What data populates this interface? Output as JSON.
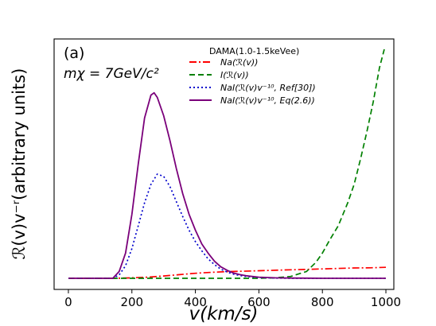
{
  "chart_data": {
    "type": "line",
    "panel_label": "(a)",
    "mass_label": "mχ = 7GeV/c²",
    "xlabel": "v(km/s)",
    "ylabel": "ℛ(v)v⁻ʳ(arbitrary units)",
    "legend_title": "DAMA(1.0-1.5keVee)",
    "legend_position": "top-right",
    "xlim": [
      -45,
      1025
    ],
    "ylim": [
      0,
      100
    ],
    "xticks": [
      0,
      200,
      400,
      600,
      800,
      1000
    ],
    "yticks_shown": false,
    "grid": false,
    "series": [
      {
        "name": "Na(ℛ(v))",
        "color": "#ff0000",
        "dash": "dashdot",
        "x": [
          0,
          150,
          200,
          250,
          300,
          350,
          400,
          450,
          500,
          550,
          600,
          650,
          700,
          750,
          800,
          850,
          900,
          950,
          1000
        ],
        "y": [
          0,
          0,
          0.2,
          0.5,
          1.0,
          1.6,
          2.2,
          2.6,
          2.9,
          3.1,
          3.3,
          3.5,
          3.7,
          3.9,
          4.1,
          4.3,
          4.5,
          4.6,
          4.8
        ]
      },
      {
        "name": "I(ℛ(v))",
        "color": "#008000",
        "dash": "dashed",
        "x": [
          0,
          100,
          200,
          300,
          400,
          500,
          600,
          650,
          700,
          750,
          780,
          800,
          820,
          850,
          880,
          900,
          920,
          940,
          960,
          980,
          995
        ],
        "y": [
          0,
          0,
          0,
          0,
          0,
          0,
          0,
          0.2,
          0.8,
          3,
          7,
          11,
          16,
          23,
          33,
          41,
          52,
          64,
          77,
          92,
          100
        ]
      },
      {
        "name": "NaI(ℛ(v)v⁻¹⁰, Ref[30])",
        "color": "#0000cc",
        "dash": "dotted",
        "x": [
          0,
          140,
          160,
          180,
          200,
          220,
          240,
          260,
          280,
          300,
          320,
          340,
          360,
          380,
          400,
          420,
          440,
          460,
          480,
          500,
          520,
          540,
          560,
          600,
          650,
          700,
          1000
        ],
        "y": [
          0,
          0,
          1.5,
          5.5,
          13,
          23,
          33,
          41,
          45.5,
          44.5,
          40,
          33.5,
          27,
          21,
          16,
          12,
          8.5,
          6,
          4,
          2.7,
          1.8,
          1.2,
          0.8,
          0.3,
          0.1,
          0,
          0
        ]
      },
      {
        "name": "NaI(ℛ(v)v⁻¹⁰, Eq(2.6))",
        "color": "#7a007a",
        "dash": "solid",
        "x": [
          0,
          140,
          160,
          180,
          200,
          220,
          240,
          260,
          270,
          280,
          300,
          320,
          340,
          360,
          380,
          400,
          420,
          440,
          460,
          480,
          500,
          520,
          540,
          560,
          600,
          650,
          700,
          800,
          1000
        ],
        "y": [
          0,
          0,
          3,
          11,
          28,
          50,
          70,
          80,
          81,
          79,
          71,
          60,
          48,
          37,
          28,
          21,
          15,
          11,
          7.5,
          5,
          3.5,
          2.3,
          1.6,
          1.1,
          0.5,
          0.2,
          0.1,
          0,
          0
        ]
      }
    ]
  }
}
